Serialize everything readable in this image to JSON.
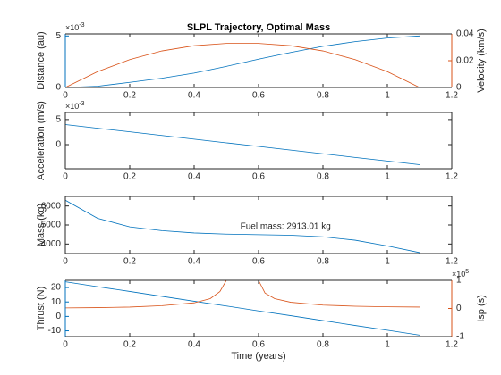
{
  "chart_data": [
    {
      "type": "line",
      "title": "SLPL Trajectory, Optimal Mass",
      "ylabel": "Distance (au)",
      "y_exponent_base": "×10",
      "y_exponent": "-3",
      "y2label": "Velocity (km/s)",
      "y_color": "#0072BD",
      "y2_color": "#D95319",
      "x": [
        0,
        0.1,
        0.2,
        0.3,
        0.4,
        0.5,
        0.6,
        0.7,
        0.8,
        0.9,
        1.0,
        1.1
      ],
      "xlim": [
        0,
        1.2
      ],
      "xticks": [
        0,
        0.2,
        0.4,
        0.6,
        0.8,
        1,
        1.2
      ],
      "ylim": [
        0,
        5.2
      ],
      "yticks": [
        0,
        5
      ],
      "y2lim": [
        0,
        0.04
      ],
      "y2ticks": [
        0,
        0.02,
        0.04
      ],
      "series": [
        {
          "name": "Distance",
          "color": "#0072BD",
          "values": [
            0,
            0.12,
            0.5,
            0.9,
            1.4,
            2.05,
            2.75,
            3.4,
            4.0,
            4.45,
            4.8,
            5.0
          ]
        },
        {
          "name": "Velocity",
          "color": "#D95319",
          "axis": "y2",
          "values": [
            0,
            0.0118,
            0.0208,
            0.0273,
            0.0312,
            0.0329,
            0.0329,
            0.0312,
            0.0273,
            0.0208,
            0.0118,
            0
          ]
        }
      ]
    },
    {
      "type": "line",
      "ylabel": "Acceleration (m/s)",
      "y_exponent_base": "×10",
      "y_exponent": "-3",
      "x": [
        0,
        0.1,
        0.2,
        0.3,
        0.4,
        0.5,
        0.6,
        0.7,
        0.8,
        0.9,
        1.0,
        1.1
      ],
      "xlim": [
        0,
        1.2
      ],
      "xticks": [
        0,
        0.2,
        0.4,
        0.6,
        0.8,
        1,
        1.2
      ],
      "ylim": [
        -4.8,
        6.4
      ],
      "yticks": [
        0,
        5
      ],
      "series": [
        {
          "name": "Acceleration",
          "color": "#0072BD",
          "values": [
            4.0,
            3.27,
            2.55,
            1.82,
            1.09,
            0.36,
            -0.36,
            -1.09,
            -1.82,
            -2.55,
            -3.27,
            -4.0
          ]
        }
      ]
    },
    {
      "type": "line",
      "ylabel": "Mass (kg)",
      "annotation": "Fuel mass: 2913.01 kg",
      "x": [
        0,
        0.1,
        0.2,
        0.3,
        0.4,
        0.5,
        0.6,
        0.7,
        0.8,
        0.9,
        1.0,
        1.1
      ],
      "xlim": [
        0,
        1.2
      ],
      "xticks": [
        0,
        0.2,
        0.4,
        0.6,
        0.8,
        1,
        1.2
      ],
      "ylim": [
        3500,
        6500
      ],
      "yticks": [
        4000,
        5000,
        6000
      ],
      "series": [
        {
          "name": "Mass",
          "color": "#0072BD",
          "values": [
            6300,
            5350,
            4900,
            4700,
            4580,
            4520,
            4490,
            4460,
            4380,
            4200,
            3900,
            3550
          ]
        }
      ]
    },
    {
      "type": "line",
      "ylabel": "Thrust (N)",
      "y2label": "Isp (s)",
      "y2_exponent_base": "×10",
      "y2_exponent": "5",
      "xlabel": "Time (years)",
      "y_color": "#0072BD",
      "y2_color": "#D95319",
      "x": [
        0,
        0.1,
        0.2,
        0.3,
        0.4,
        0.5,
        0.6,
        0.7,
        0.8,
        0.9,
        1.0,
        1.1
      ],
      "xlim": [
        0,
        1.2
      ],
      "xticks": [
        0,
        0.2,
        0.4,
        0.6,
        0.8,
        1,
        1.2
      ],
      "ylim": [
        -14,
        25
      ],
      "yticks": [
        -10,
        0,
        10,
        20
      ],
      "y2lim": [
        -1,
        1
      ],
      "y2ticks": [
        -1,
        0,
        1
      ],
      "series": [
        {
          "name": "Thrust",
          "color": "#0072BD",
          "values": [
            24,
            20.6,
            17.3,
            13.9,
            10.5,
            7.2,
            3.8,
            0.5,
            -2.9,
            -6.3,
            -9.6,
            -13
          ]
        },
        {
          "name": "Isp",
          "color": "#D95319",
          "axis": "y2",
          "x": [
            0,
            0.1,
            0.2,
            0.3,
            0.4,
            0.45,
            0.48,
            0.5,
            0.55,
            0.6,
            0.62,
            0.65,
            0.7,
            0.8,
            0.9,
            1.0,
            1.1
          ],
          "values": [
            0.02,
            0.03,
            0.05,
            0.1,
            0.2,
            0.35,
            0.6,
            1.0,
            null,
            1.0,
            0.55,
            0.35,
            0.22,
            0.12,
            0.08,
            0.06,
            0.05
          ]
        }
      ]
    }
  ]
}
